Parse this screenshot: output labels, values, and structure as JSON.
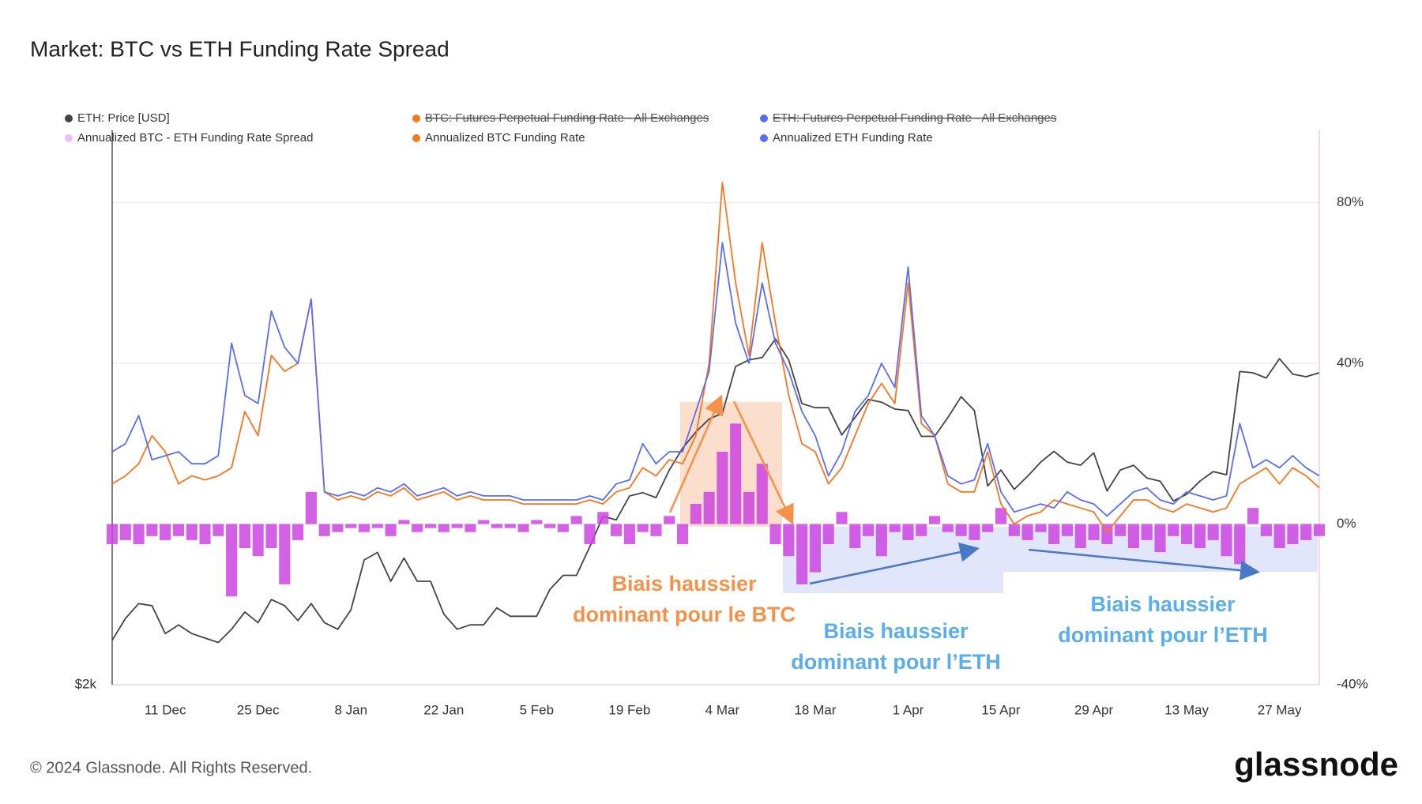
{
  "chart_data": {
    "type": "line",
    "title": "Market: BTC vs ETH Funding Rate Spread",
    "x": [
      "3 Dec",
      "5 Dec",
      "7 Dec",
      "9 Dec",
      "11 Dec",
      "13 Dec",
      "15 Dec",
      "17 Dec",
      "19 Dec",
      "21 Dec",
      "23 Dec",
      "25 Dec",
      "27 Dec",
      "29 Dec",
      "31 Dec",
      "2 Jan",
      "4 Jan",
      "6 Jan",
      "8 Jan",
      "10 Jan",
      "12 Jan",
      "14 Jan",
      "16 Jan",
      "18 Jan",
      "20 Jan",
      "22 Jan",
      "24 Jan",
      "26 Jan",
      "28 Jan",
      "30 Jan",
      "1 Feb",
      "3 Feb",
      "5 Feb",
      "7 Feb",
      "9 Feb",
      "11 Feb",
      "13 Feb",
      "15 Feb",
      "17 Feb",
      "19 Feb",
      "21 Feb",
      "23 Feb",
      "25 Feb",
      "27 Feb",
      "29 Feb",
      "2 Mar",
      "4 Mar",
      "6 Mar",
      "8 Mar",
      "10 Mar",
      "12 Mar",
      "14 Mar",
      "16 Mar",
      "18 Mar",
      "20 Mar",
      "22 Mar",
      "24 Mar",
      "26 Mar",
      "28 Mar",
      "30 Mar",
      "1 Apr",
      "3 Apr",
      "5 Apr",
      "7 Apr",
      "9 Apr",
      "11 Apr",
      "13 Apr",
      "15 Apr",
      "17 Apr",
      "19 Apr",
      "21 Apr",
      "23 Apr",
      "25 Apr",
      "27 Apr",
      "29 Apr",
      "1 May",
      "3 May",
      "5 May",
      "7 May",
      "9 May",
      "11 May",
      "13 May",
      "15 May",
      "17 May",
      "19 May",
      "21 May",
      "23 May",
      "25 May",
      "27 May",
      "29 May",
      "31 May",
      "2 Jun"
    ],
    "xticks": [
      "11 Dec",
      "25 Dec",
      "8 Jan",
      "22 Jan",
      "5 Feb",
      "19 Feb",
      "4 Mar",
      "18 Mar",
      "1 Apr",
      "15 Apr",
      "29 Apr",
      "13 May",
      "27 May"
    ],
    "ylim": [
      2000,
      6200
    ],
    "log_y": true,
    "yticks": [
      {
        "value": 2000,
        "label": "$2k"
      }
    ],
    "y2lim": [
      -40,
      98
    ],
    "y2ticks": [
      {
        "value": -40,
        "label": "-40%"
      },
      {
        "value": 0,
        "label": "0%"
      },
      {
        "value": 40,
        "label": "40%"
      },
      {
        "value": 80,
        "label": "80%"
      }
    ],
    "grid": true,
    "series": [
      {
        "name": "ETH: Price [USD]",
        "color": "#444444",
        "axis": "y",
        "values": [
          2190,
          2290,
          2360,
          2350,
          2220,
          2260,
          2220,
          2200,
          2180,
          2240,
          2320,
          2270,
          2380,
          2350,
          2280,
          2360,
          2270,
          2240,
          2330,
          2580,
          2620,
          2470,
          2590,
          2470,
          2470,
          2310,
          2240,
          2260,
          2260,
          2340,
          2300,
          2300,
          2300,
          2430,
          2500,
          2500,
          2650,
          2820,
          2800,
          2940,
          2960,
          2930,
          3100,
          3240,
          3350,
          3440,
          3480,
          3830,
          3880,
          3900,
          4050,
          3880,
          3550,
          3520,
          3520,
          3330,
          3450,
          3580,
          3560,
          3510,
          3500,
          3320,
          3320,
          3450,
          3600,
          3500,
          3000,
          3100,
          2980,
          3060,
          3150,
          3220,
          3150,
          3130,
          3210,
          2970,
          3100,
          3130,
          3050,
          3030,
          2910,
          2950,
          3030,
          3090,
          3070,
          3790,
          3780,
          3740,
          3890,
          3770,
          3750,
          3780
        ]
      },
      {
        "name": "Annualized BTC - ETH Funding Rate Spread",
        "color": "#cc44e0",
        "axis": "y2",
        "type": "bar",
        "values": [
          -5,
          -4,
          -5,
          -3,
          -4,
          -3,
          -4,
          -5,
          -3,
          -18,
          -6,
          -8,
          -6,
          -15,
          -4,
          8,
          -3,
          -2,
          -1,
          -2,
          -1,
          -3,
          1,
          -2,
          -1,
          -2,
          -1,
          -2,
          1,
          -1,
          -1,
          -2,
          1,
          -1,
          -2,
          2,
          -5,
          3,
          -3,
          -5,
          -2,
          -3,
          2,
          -5,
          5,
          8,
          18,
          25,
          8,
          15,
          -5,
          -8,
          -15,
          -12,
          -5,
          3,
          -6,
          -3,
          -8,
          -2,
          -4,
          -3,
          2,
          -2,
          -3,
          -4,
          -2,
          4,
          -3,
          -4,
          -2,
          -5,
          -3,
          -6,
          -4,
          -5,
          -3,
          -6,
          -4,
          -7,
          -3,
          -5,
          -6,
          -4,
          -8,
          -10,
          4,
          -3,
          -6,
          -5,
          -4,
          -3
        ]
      },
      {
        "name": "Annualized BTC Funding Rate",
        "color": "#f7761f",
        "axis": "y2",
        "values": [
          10,
          12,
          15,
          22,
          18,
          10,
          12,
          11,
          12,
          14,
          28,
          22,
          42,
          38,
          40,
          56,
          8,
          6,
          7,
          6,
          8,
          7,
          9,
          6,
          7,
          8,
          6,
          7,
          6,
          6,
          6,
          5,
          5,
          5,
          5,
          5,
          6,
          5,
          8,
          9,
          14,
          12,
          16,
          15,
          22,
          40,
          85,
          60,
          42,
          70,
          50,
          32,
          20,
          18,
          10,
          14,
          22,
          30,
          35,
          30,
          60,
          25,
          22,
          10,
          8,
          8,
          18,
          5,
          0,
          2,
          3,
          6,
          5,
          4,
          3,
          -2,
          2,
          6,
          6,
          4,
          3,
          5,
          4,
          3,
          4,
          10,
          12,
          14,
          10,
          14,
          12,
          9
        ]
      },
      {
        "name": "Annualized ETH Funding Rate",
        "color": "#5b6ef0",
        "axis": "y2",
        "values": [
          18,
          20,
          27,
          16,
          17,
          18,
          15,
          15,
          17,
          45,
          32,
          30,
          53,
          44,
          40,
          56,
          8,
          7,
          8,
          7,
          9,
          8,
          10,
          7,
          8,
          9,
          7,
          8,
          7,
          7,
          7,
          6,
          6,
          6,
          6,
          6,
          7,
          6,
          10,
          11,
          20,
          15,
          18,
          18,
          28,
          38,
          70,
          50,
          40,
          60,
          45,
          38,
          28,
          22,
          12,
          18,
          28,
          32,
          40,
          34,
          64,
          27,
          22,
          12,
          10,
          11,
          20,
          8,
          3,
          4,
          5,
          4,
          8,
          6,
          5,
          2,
          5,
          8,
          9,
          6,
          5,
          8,
          7,
          6,
          7,
          25,
          14,
          16,
          14,
          17,
          14,
          12
        ]
      }
    ],
    "hidden_series": [
      {
        "name": "BTC: Futures Perpetual Funding Rate - All Exchanges",
        "color": "#f7761f"
      },
      {
        "name": "ETH: Futures Perpetual Funding Rate - All Exchanges",
        "color": "#5b6ef0"
      }
    ],
    "annotations": [
      {
        "lines": [
          "Biais haussier",
          "dominant pour le BTC"
        ],
        "color": "#f5924a"
      },
      {
        "lines": [
          "Biais haussier",
          "dominant pour l’ETH"
        ],
        "color": "#5aaeea"
      },
      {
        "lines": [
          "Biais haussier",
          "dominant pour l’ETH"
        ],
        "color": "#5aaeea"
      }
    ]
  },
  "footer": {
    "copyright": "© 2024 Glassnode. All Rights Reserved.",
    "logo": "glassnode"
  }
}
